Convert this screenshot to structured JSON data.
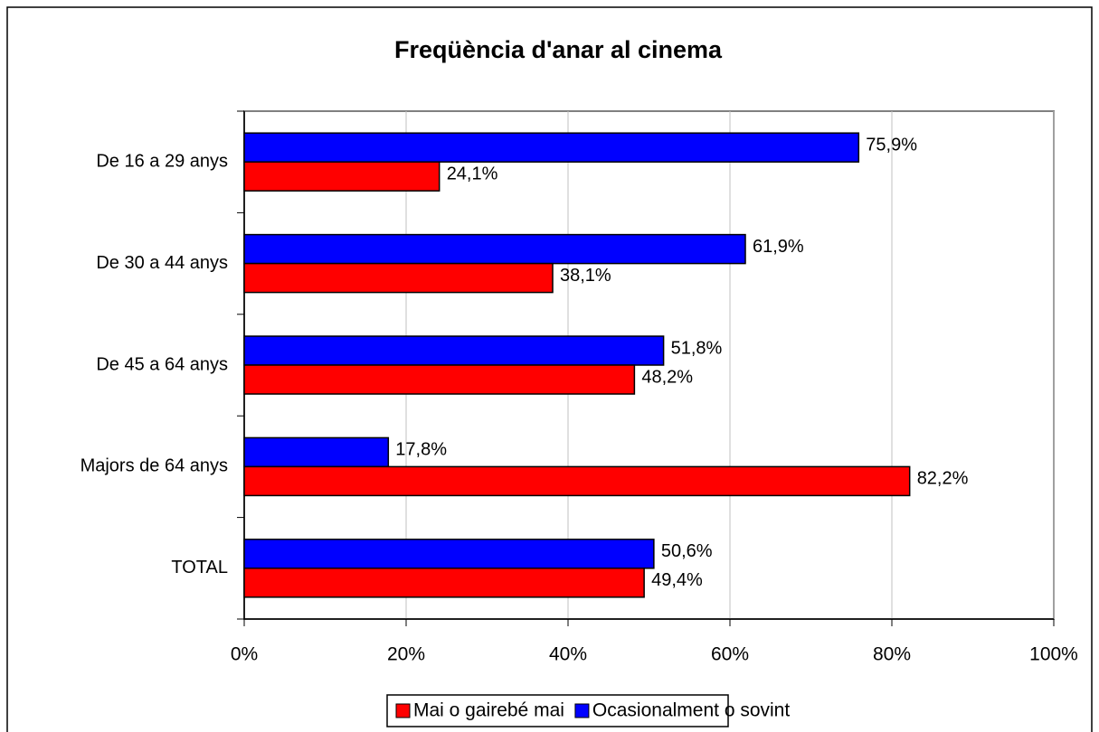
{
  "chart_data": {
    "type": "hbar",
    "title": "Freqüència d'anar al cinema",
    "categories": [
      "De 16 a 29 anys",
      "De 30 a 44 anys",
      "De 45 a 64 anys",
      "Majors de 64 anys",
      "TOTAL"
    ],
    "series": [
      {
        "name": "Mai o gairebé mai",
        "color": "#ff0000",
        "values": [
          24.1,
          38.1,
          48.2,
          82.2,
          49.4
        ],
        "value_labels": [
          "24,1%",
          "38,1%",
          "48,2%",
          "82,2%",
          "49,4%"
        ]
      },
      {
        "name": "Ocasionalment o sovint",
        "color": "#0000ff",
        "values": [
          75.9,
          61.9,
          51.8,
          17.8,
          50.6
        ],
        "value_labels": [
          "75,9%",
          "61,9%",
          "51,8%",
          "17,8%",
          "50,6%"
        ]
      }
    ],
    "xlim": [
      0,
      100
    ],
    "xticks": [
      {
        "value": 0,
        "label": "0%"
      },
      {
        "value": 20,
        "label": "20%"
      },
      {
        "value": 40,
        "label": "40%"
      },
      {
        "value": 60,
        "label": "60%"
      },
      {
        "value": 80,
        "label": "80%"
      },
      {
        "value": 100,
        "label": "100%"
      }
    ],
    "grid": true,
    "legend": "bottom"
  }
}
